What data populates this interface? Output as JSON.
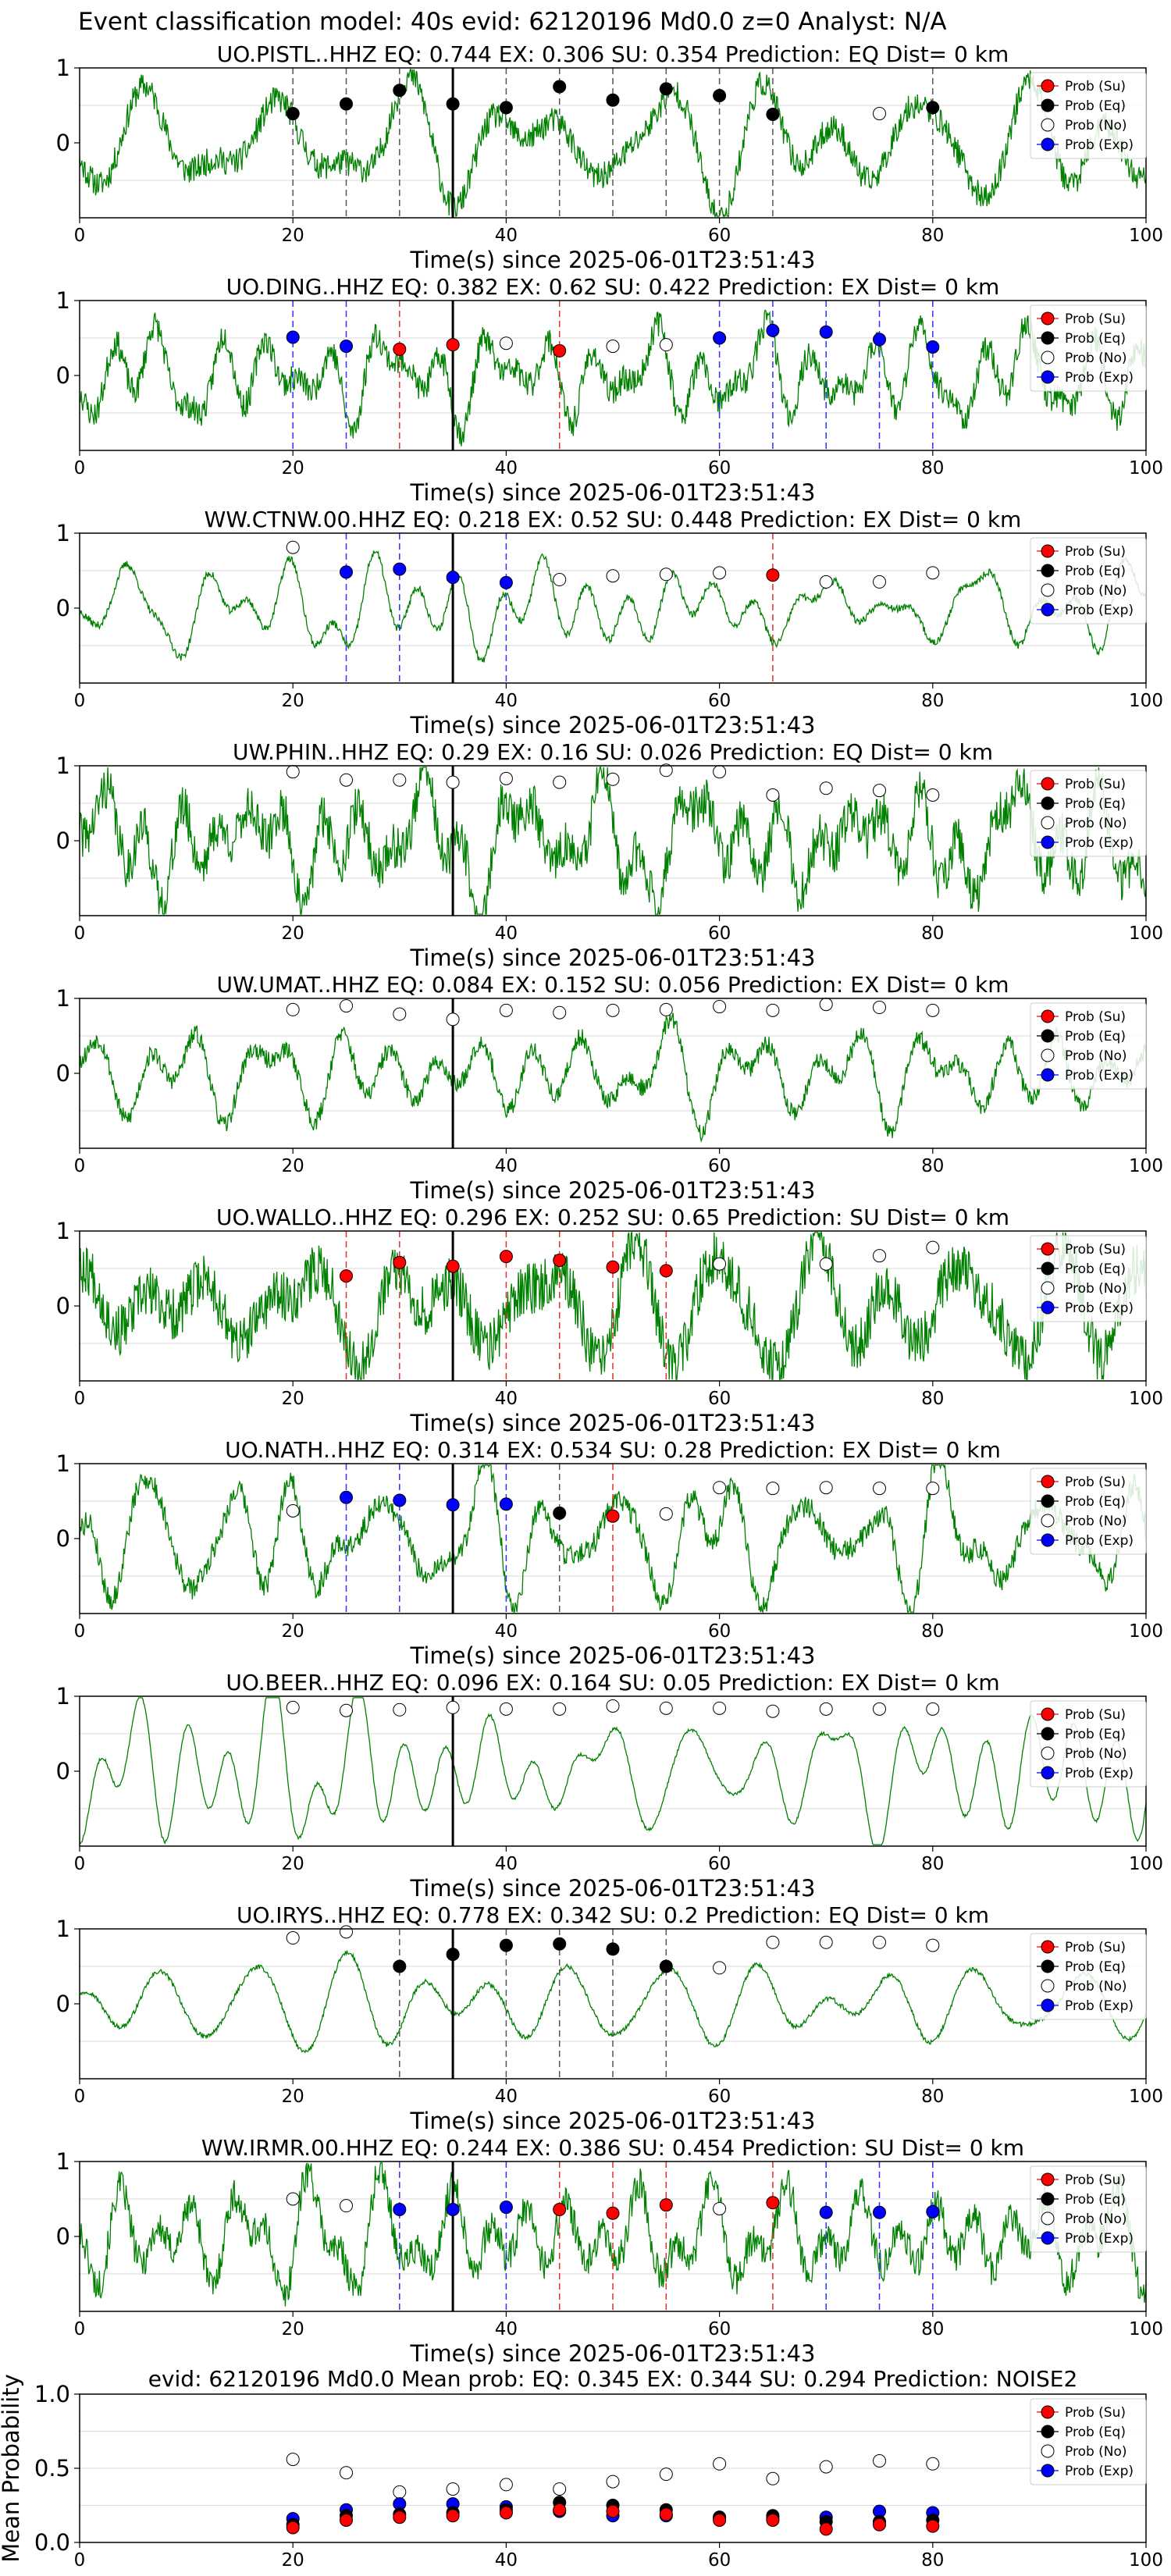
{
  "suptitle": "Event classification model: 40s evid: 62120196 Md0.0 z=0 Analyst: N/A",
  "x_label": "Time(s) since 2025-06-01T23:51:43",
  "legend": [
    "Prob (Su)",
    "Prob (Eq)",
    "Prob (No)",
    "Prob (Exp)"
  ],
  "colors": {
    "waveform": "#008000",
    "su": "#ff0000",
    "eq": "#000000",
    "no": "#ffffff",
    "exp": "#0000ff",
    "pick": "#000000",
    "grid": "#d9d9d9"
  },
  "chart_data": {
    "type": "scatter",
    "xlim": [
      0,
      100
    ],
    "xticks": [
      0,
      20,
      40,
      60,
      80,
      100
    ],
    "station_ylim": [
      -1,
      1
    ],
    "station_yticks": [
      0,
      1
    ],
    "mean_ylim": [
      0,
      1
    ],
    "mean_yticks": [
      0,
      0.5,
      1.0
    ],
    "pick_time": 35,
    "stations": [
      {
        "title": "UO.PISTL..HHZ   EQ: 0.744  EX: 0.306  SU: 0.354   Prediction: EQ    Dist= 0 km",
        "seed": 11,
        "noise": 0.18,
        "points": [
          [
            20,
            "eq",
            0.39
          ],
          [
            25,
            "eq",
            0.52
          ],
          [
            30,
            "eq",
            0.7
          ],
          [
            35,
            "eq",
            0.52
          ],
          [
            40,
            "eq",
            0.47
          ],
          [
            45,
            "eq",
            0.75
          ],
          [
            50,
            "eq",
            0.57
          ],
          [
            55,
            "eq",
            0.72
          ],
          [
            60,
            "eq",
            0.63
          ],
          [
            65,
            "eq",
            0.38
          ],
          [
            75,
            "no",
            0.39
          ],
          [
            80,
            "eq",
            0.47
          ]
        ]
      },
      {
        "title": "UO.DING..HHZ   EQ: 0.382  EX: 0.62  SU: 0.422   Prediction: EX    Dist= 0 km",
        "seed": 23,
        "noise": 0.18,
        "points": [
          [
            20,
            "exp",
            0.51
          ],
          [
            25,
            "exp",
            0.39
          ],
          [
            30,
            "su",
            0.35
          ],
          [
            35,
            "su",
            0.41
          ],
          [
            40,
            "no",
            0.43
          ],
          [
            45,
            "su",
            0.33
          ],
          [
            50,
            "no",
            0.39
          ],
          [
            55,
            "no",
            0.41
          ],
          [
            60,
            "exp",
            0.5
          ],
          [
            65,
            "exp",
            0.6
          ],
          [
            70,
            "exp",
            0.58
          ],
          [
            75,
            "exp",
            0.48
          ],
          [
            80,
            "exp",
            0.38
          ]
        ]
      },
      {
        "title": "WW.CTNW.00.HHZ   EQ: 0.218  EX: 0.52  SU: 0.448   Prediction: EX    Dist= 0 km",
        "seed": 37,
        "noise": 0.05,
        "points": [
          [
            20,
            "no",
            0.81
          ],
          [
            25,
            "exp",
            0.48
          ],
          [
            30,
            "exp",
            0.52
          ],
          [
            35,
            "exp",
            0.41
          ],
          [
            40,
            "exp",
            0.34
          ],
          [
            45,
            "no",
            0.38
          ],
          [
            50,
            "no",
            0.43
          ],
          [
            55,
            "no",
            0.45
          ],
          [
            60,
            "no",
            0.47
          ],
          [
            65,
            "su",
            0.44
          ],
          [
            70,
            "no",
            0.35
          ],
          [
            75,
            "no",
            0.35
          ],
          [
            80,
            "no",
            0.47
          ]
        ]
      },
      {
        "title": "UW.PHIN..HHZ   EQ: 0.29  EX: 0.16  SU: 0.026   Prediction: EQ    Dist= 0 km",
        "seed": 41,
        "noise": 0.3,
        "points": [
          [
            20,
            "no",
            0.92
          ],
          [
            25,
            "no",
            0.81
          ],
          [
            30,
            "no",
            0.81
          ],
          [
            35,
            "no",
            0.78
          ],
          [
            40,
            "no",
            0.83
          ],
          [
            45,
            "no",
            0.78
          ],
          [
            50,
            "no",
            0.82
          ],
          [
            55,
            "no",
            0.94
          ],
          [
            60,
            "no",
            0.92
          ],
          [
            65,
            "no",
            0.61
          ],
          [
            70,
            "no",
            0.7
          ],
          [
            75,
            "no",
            0.67
          ],
          [
            80,
            "no",
            0.61
          ]
        ]
      },
      {
        "title": "UW.UMAT..HHZ   EQ: 0.084  EX: 0.152  SU: 0.056   Prediction: EX    Dist= 0 km",
        "seed": 53,
        "noise": 0.12,
        "points": [
          [
            20,
            "no",
            0.85
          ],
          [
            25,
            "no",
            0.9
          ],
          [
            30,
            "no",
            0.79
          ],
          [
            35,
            "no",
            0.72
          ],
          [
            40,
            "no",
            0.84
          ],
          [
            45,
            "no",
            0.81
          ],
          [
            50,
            "no",
            0.84
          ],
          [
            55,
            "no",
            0.85
          ],
          [
            60,
            "no",
            0.89
          ],
          [
            65,
            "no",
            0.84
          ],
          [
            70,
            "no",
            0.92
          ],
          [
            75,
            "no",
            0.88
          ],
          [
            80,
            "no",
            0.84
          ]
        ]
      },
      {
        "title": "UO.WALLO..HHZ   EQ: 0.296  EX: 0.252  SU: 0.65   Prediction: SU    Dist= 0 km",
        "seed": 67,
        "noise": 0.35,
        "points": [
          [
            25,
            "su",
            0.4
          ],
          [
            30,
            "su",
            0.58
          ],
          [
            35,
            "su",
            0.53
          ],
          [
            40,
            "su",
            0.66
          ],
          [
            45,
            "su",
            0.61
          ],
          [
            50,
            "su",
            0.52
          ],
          [
            55,
            "su",
            0.47
          ],
          [
            60,
            "no",
            0.56
          ],
          [
            70,
            "no",
            0.56
          ],
          [
            75,
            "no",
            0.67
          ],
          [
            80,
            "no",
            0.78
          ]
        ]
      },
      {
        "title": "UO.NATH..HHZ   EQ: 0.314  EX: 0.534  SU: 0.28   Prediction: EX    Dist= 0 km",
        "seed": 79,
        "noise": 0.15,
        "points": [
          [
            20,
            "no",
            0.37
          ],
          [
            25,
            "exp",
            0.55
          ],
          [
            30,
            "exp",
            0.51
          ],
          [
            35,
            "exp",
            0.45
          ],
          [
            40,
            "exp",
            0.46
          ],
          [
            45,
            "eq",
            0.34
          ],
          [
            50,
            "su",
            0.3
          ],
          [
            55,
            "no",
            0.33
          ],
          [
            60,
            "no",
            0.68
          ],
          [
            65,
            "no",
            0.67
          ],
          [
            70,
            "no",
            0.68
          ],
          [
            75,
            "no",
            0.67
          ],
          [
            80,
            "no",
            0.67
          ]
        ]
      },
      {
        "title": "UO.BEER..HHZ   EQ: 0.096  EX: 0.164  SU: 0.05   Prediction: EX    Dist= 0 km",
        "seed": 83,
        "noise": 0.02,
        "points": [
          [
            20,
            "no",
            0.85
          ],
          [
            25,
            "no",
            0.81
          ],
          [
            30,
            "no",
            0.82
          ],
          [
            35,
            "no",
            0.85
          ],
          [
            40,
            "no",
            0.83
          ],
          [
            45,
            "no",
            0.83
          ],
          [
            50,
            "no",
            0.87
          ],
          [
            55,
            "no",
            0.84
          ],
          [
            60,
            "no",
            0.84
          ],
          [
            65,
            "no",
            0.8
          ],
          [
            70,
            "no",
            0.83
          ],
          [
            75,
            "no",
            0.83
          ],
          [
            80,
            "no",
            0.83
          ]
        ]
      },
      {
        "title": "UO.IRYS..HHZ   EQ: 0.778  EX: 0.342  SU: 0.2   Prediction: EQ    Dist= 0 km",
        "seed": 97,
        "noise": 0.03,
        "points": [
          [
            20,
            "no",
            0.88
          ],
          [
            25,
            "no",
            0.96
          ],
          [
            30,
            "eq",
            0.5
          ],
          [
            35,
            "eq",
            0.66
          ],
          [
            40,
            "eq",
            0.78
          ],
          [
            45,
            "eq",
            0.8
          ],
          [
            50,
            "eq",
            0.73
          ],
          [
            55,
            "eq",
            0.5
          ],
          [
            60,
            "no",
            0.48
          ],
          [
            65,
            "no",
            0.82
          ],
          [
            70,
            "no",
            0.82
          ],
          [
            75,
            "no",
            0.82
          ],
          [
            80,
            "no",
            0.78
          ]
        ]
      },
      {
        "title": "WW.IRMR.00.HHZ   EQ: 0.244  EX: 0.386  SU: 0.454   Prediction: SU    Dist= 0 km",
        "seed": 101,
        "noise": 0.22,
        "points": [
          [
            20,
            "no",
            0.5
          ],
          [
            25,
            "no",
            0.41
          ],
          [
            30,
            "exp",
            0.36
          ],
          [
            35,
            "exp",
            0.36
          ],
          [
            40,
            "exp",
            0.39
          ],
          [
            45,
            "su",
            0.36
          ],
          [
            50,
            "su",
            0.31
          ],
          [
            55,
            "su",
            0.42
          ],
          [
            60,
            "no",
            0.37
          ],
          [
            65,
            "su",
            0.45
          ],
          [
            70,
            "exp",
            0.32
          ],
          [
            75,
            "exp",
            0.32
          ],
          [
            80,
            "exp",
            0.33
          ]
        ]
      }
    ],
    "mean": {
      "title": "evid: 62120196  Md0.0   Mean prob:   EQ: 0.345  EX: 0.344  SU: 0.294   Prediction: NOISE2",
      "ylabel": "Mean Probability",
      "x": [
        20,
        25,
        30,
        35,
        40,
        45,
        50,
        55,
        60,
        65,
        70,
        75,
        80
      ],
      "series": [
        {
          "name": "Prob (No)",
          "key": "no",
          "values": [
            0.56,
            0.47,
            0.34,
            0.36,
            0.39,
            0.36,
            0.41,
            0.46,
            0.53,
            0.43,
            0.51,
            0.55,
            0.53
          ]
        },
        {
          "name": "Prob (Exp)",
          "key": "exp",
          "values": [
            0.16,
            0.22,
            0.26,
            0.26,
            0.24,
            0.21,
            0.18,
            0.18,
            0.17,
            0.17,
            0.17,
            0.21,
            0.2
          ]
        },
        {
          "name": "Prob (Eq)",
          "key": "eq",
          "values": [
            0.12,
            0.18,
            0.19,
            0.2,
            0.22,
            0.27,
            0.25,
            0.22,
            0.17,
            0.18,
            0.14,
            0.14,
            0.15
          ]
        },
        {
          "name": "Prob (Su)",
          "key": "su",
          "values": [
            0.1,
            0.15,
            0.17,
            0.18,
            0.2,
            0.22,
            0.21,
            0.19,
            0.15,
            0.15,
            0.09,
            0.12,
            0.11
          ]
        }
      ]
    }
  }
}
